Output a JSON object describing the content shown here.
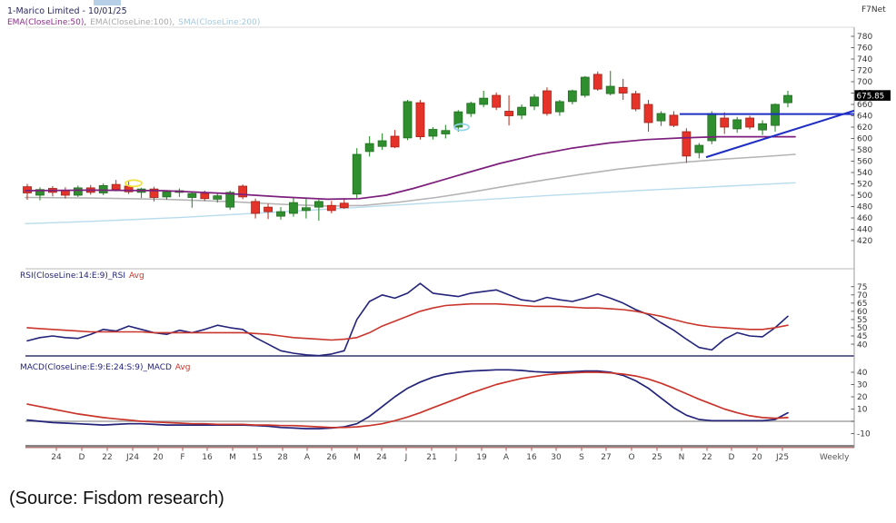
{
  "header": {
    "title": "1-Marico Limited - 10/01/25",
    "platform": "F7Net",
    "legend": [
      {
        "label": "EMA(CloseLine:50),",
        "color": "#8b2f8b"
      },
      {
        "label": "EMA(CloseLine:100),",
        "color": "#a8a8a8"
      },
      {
        "label": "SMA(CloseLine:200)",
        "color": "#a5c9de"
      }
    ]
  },
  "price_label": "675.85",
  "timeframe": "Weekly",
  "source": "(Source: Fisdom research)",
  "rsi_label": {
    "main": "RSI(CloseLine:14:E:9)_RSI",
    "avg": "Avg"
  },
  "macd_label": {
    "main": "MACD(CloseLine:E:9:E:24:S:9)_MACD",
    "avg": "Avg"
  },
  "colors": {
    "candle_up": "#2f8f2f",
    "candle_up_stroke": "#256b25",
    "candle_down": "#e63329",
    "candle_down_stroke": "#a32318",
    "ema50": "#7d1f7d",
    "ema100": "#b4b4b4",
    "sma200": "#b9dcec",
    "indicator_main": "#23237a",
    "indicator_avg": "#c9352b",
    "trendline": "#1f2ec4",
    "axis_red": "#9a4a4a",
    "tick_red": "#b05050",
    "annotation_yellow": "#f0e13a",
    "annotation_cyan": "#8fd4e8"
  },
  "chart_data": [
    {
      "type": "candlestick",
      "title": "1-Marico Limited - 10/01/25",
      "timeframe": "Weekly",
      "last_price": 675.85,
      "ylim": [
        420,
        780
      ],
      "yticks": [
        780,
        760,
        740,
        720,
        700,
        680,
        660,
        640,
        620,
        600,
        580,
        560,
        540,
        520,
        500,
        480,
        460,
        440,
        420
      ],
      "x_labels": [
        [
          62,
          "24"
        ],
        [
          90,
          "D"
        ],
        [
          118,
          "22"
        ],
        [
          146,
          "J24"
        ],
        [
          174,
          "20"
        ],
        [
          201,
          "F"
        ],
        [
          228,
          "16"
        ],
        [
          256,
          "M"
        ],
        [
          283,
          "15"
        ],
        [
          311,
          "28"
        ],
        [
          338,
          "A"
        ],
        [
          365,
          "26"
        ],
        [
          393,
          "M"
        ],
        [
          420,
          "24"
        ],
        [
          447,
          "J"
        ],
        [
          475,
          "21"
        ],
        [
          502,
          "J"
        ],
        [
          530,
          "19"
        ],
        [
          557,
          "A"
        ],
        [
          585,
          "16"
        ],
        [
          612,
          "30"
        ],
        [
          640,
          "S"
        ],
        [
          667,
          "27"
        ],
        [
          695,
          "O"
        ],
        [
          723,
          "25"
        ],
        [
          750,
          "N"
        ],
        [
          778,
          "22"
        ],
        [
          805,
          "D"
        ],
        [
          833,
          "20"
        ],
        [
          861,
          "J25"
        ]
      ],
      "candles_ohlc": [
        [
          515,
          520,
          492,
          504
        ],
        [
          500,
          514,
          491,
          510
        ],
        [
          512,
          516,
          498,
          505
        ],
        [
          508,
          514,
          494,
          500
        ],
        [
          500,
          517,
          497,
          513
        ],
        [
          513,
          518,
          501,
          505
        ],
        [
          504,
          521,
          500,
          517
        ],
        [
          519,
          527,
          507,
          510
        ],
        [
          516,
          526,
          502,
          506
        ],
        [
          505,
          513,
          495,
          511
        ],
        [
          511,
          515,
          489,
          496
        ],
        [
          497,
          509,
          492,
          506
        ],
        [
          505,
          512,
          497,
          508
        ],
        [
          496,
          505,
          478,
          503
        ],
        [
          503,
          508,
          490,
          494
        ],
        [
          493,
          503,
          487,
          499
        ],
        [
          479,
          508,
          474,
          505
        ],
        [
          516,
          519,
          493,
          497
        ],
        [
          489,
          494,
          459,
          468
        ],
        [
          479,
          485,
          458,
          471
        ],
        [
          463,
          479,
          457,
          471
        ],
        [
          468,
          495,
          462,
          487
        ],
        [
          473,
          494,
          459,
          478
        ],
        [
          479,
          492,
          455,
          489
        ],
        [
          482,
          490,
          468,
          473
        ],
        [
          486,
          492,
          476,
          478
        ],
        [
          502,
          583,
          495,
          572
        ],
        [
          577,
          604,
          568,
          591
        ],
        [
          586,
          609,
          580,
          596
        ],
        [
          604,
          615,
          583,
          585
        ],
        [
          601,
          668,
          597,
          665
        ],
        [
          663,
          668,
          598,
          603
        ],
        [
          604,
          620,
          598,
          616
        ],
        [
          608,
          624,
          600,
          614
        ],
        [
          620,
          650,
          612,
          647
        ],
        [
          644,
          665,
          638,
          662
        ],
        [
          660,
          684,
          655,
          671
        ],
        [
          676,
          681,
          650,
          655
        ],
        [
          648,
          676,
          623,
          640
        ],
        [
          641,
          660,
          634,
          655
        ],
        [
          657,
          678,
          650,
          673
        ],
        [
          684,
          690,
          640,
          644
        ],
        [
          647,
          668,
          640,
          665
        ],
        [
          665,
          686,
          660,
          684
        ],
        [
          676,
          710,
          672,
          708
        ],
        [
          713,
          718,
          684,
          687
        ],
        [
          679,
          719,
          676,
          692
        ],
        [
          690,
          705,
          668,
          680
        ],
        [
          679,
          684,
          648,
          652
        ],
        [
          660,
          668,
          612,
          628
        ],
        [
          631,
          648,
          622,
          644
        ],
        [
          641,
          648,
          620,
          623
        ],
        [
          612,
          618,
          557,
          569
        ],
        [
          575,
          592,
          565,
          588
        ],
        [
          596,
          648,
          590,
          644
        ],
        [
          636,
          646,
          608,
          620
        ],
        [
          617,
          638,
          610,
          633
        ],
        [
          636,
          640,
          616,
          620
        ],
        [
          615,
          632,
          606,
          626
        ],
        [
          623,
          662,
          612,
          660
        ],
        [
          663,
          684,
          655,
          675.85
        ]
      ],
      "overlays": {
        "ema50": [
          [
            28,
            508
          ],
          [
            100,
            509
          ],
          [
            180,
            508
          ],
          [
            250,
            503
          ],
          [
            310,
            497
          ],
          [
            360,
            493
          ],
          [
            395,
            494
          ],
          [
            425,
            500
          ],
          [
            455,
            512
          ],
          [
            485,
            526
          ],
          [
            515,
            540
          ],
          [
            550,
            556
          ],
          [
            590,
            571
          ],
          [
            630,
            583
          ],
          [
            670,
            592
          ],
          [
            710,
            598
          ],
          [
            750,
            601
          ],
          [
            790,
            603
          ],
          [
            830,
            603
          ],
          [
            875,
            603
          ]
        ],
        "ema100": [
          [
            28,
            496
          ],
          [
            100,
            495
          ],
          [
            180,
            493
          ],
          [
            250,
            489
          ],
          [
            310,
            484
          ],
          [
            360,
            481
          ],
          [
            400,
            482
          ],
          [
            440,
            488
          ],
          [
            480,
            496
          ],
          [
            520,
            506
          ],
          [
            560,
            517
          ],
          [
            600,
            527
          ],
          [
            640,
            537
          ],
          [
            680,
            546
          ],
          [
            720,
            553
          ],
          [
            760,
            559
          ],
          [
            800,
            564
          ],
          [
            840,
            568
          ],
          [
            875,
            572
          ]
        ],
        "sma200": [
          [
            28,
            450
          ],
          [
            100,
            454
          ],
          [
            200,
            461
          ],
          [
            300,
            470
          ],
          [
            400,
            479
          ],
          [
            500,
            489
          ],
          [
            600,
            499
          ],
          [
            700,
            508
          ],
          [
            800,
            516
          ],
          [
            875,
            522
          ]
        ]
      },
      "trendlines": [
        {
          "x1": 748,
          "p1": 643,
          "x2": 940,
          "p2": 643
        },
        {
          "x1": 777,
          "p1": 567,
          "x2": 940,
          "p2": 649
        }
      ],
      "annotations": [
        {
          "shape": "ellipse",
          "cx": 147,
          "price": 521,
          "rx": 9,
          "ry": 3.5,
          "color": "#f0e13a"
        },
        {
          "shape": "ellipse",
          "cx": 508,
          "price": 620,
          "rx": 8,
          "ry": 3.5,
          "color": "#8fd4e8"
        }
      ]
    },
    {
      "type": "line",
      "name": "RSI",
      "yticks": [
        75,
        70,
        65,
        60,
        55,
        50,
        45,
        40
      ],
      "series": [
        {
          "name": "RSI",
          "color": "#23237a",
          "values": [
            42,
            44,
            45,
            44,
            43.5,
            46,
            49,
            48,
            51,
            49,
            47,
            46,
            48.5,
            47,
            49,
            51.5,
            50,
            49,
            44,
            40,
            36,
            34.5,
            33.5,
            33,
            34,
            36,
            55,
            66,
            70,
            68,
            71,
            77,
            71,
            70,
            69,
            71,
            72,
            73,
            70,
            67,
            66,
            68.5,
            67,
            66,
            68,
            70.5,
            68,
            65,
            61,
            58,
            53,
            48.5,
            43,
            38,
            36.5,
            43,
            47,
            45,
            44.5,
            50,
            57
          ]
        },
        {
          "name": "Avg",
          "color": "#c9352b",
          "values": [
            50,
            49.5,
            49,
            48.5,
            48,
            47.5,
            47.5,
            47.5,
            47.5,
            47.5,
            47,
            47,
            47,
            47,
            47,
            47,
            47,
            47,
            46.5,
            46,
            45,
            44,
            43.5,
            43,
            42.5,
            43,
            44,
            47,
            51,
            54,
            57,
            60,
            62,
            63.5,
            64,
            64.5,
            64.5,
            64.5,
            64,
            63.5,
            63,
            63,
            63,
            62.5,
            62,
            62,
            61.5,
            61,
            60,
            58.5,
            57,
            55,
            53,
            51.5,
            50.5,
            50,
            49.5,
            49,
            49,
            50,
            51.5
          ]
        }
      ]
    },
    {
      "type": "line",
      "name": "MACD",
      "yticks": [
        40,
        30,
        20,
        10,
        0,
        -10
      ],
      "zero_line": true,
      "series": [
        {
          "name": "MACD",
          "color": "#23237a",
          "values": [
            1,
            0,
            -1,
            -1.5,
            -2,
            -2.5,
            -3,
            -2.5,
            -2,
            -2,
            -2.5,
            -3,
            -3,
            -3,
            -3,
            -3,
            -3,
            -3,
            -3.5,
            -4,
            -5,
            -5.5,
            -6,
            -6,
            -5.5,
            -4.5,
            -2,
            4,
            12,
            20,
            27,
            32,
            36,
            38.5,
            40,
            41,
            41.5,
            42,
            42,
            41.5,
            40.5,
            40,
            40,
            40.5,
            41,
            41,
            40,
            37.5,
            33,
            27,
            19,
            11,
            5,
            1.5,
            0.5,
            0.5,
            0.5,
            0.5,
            0.5,
            1.5,
            7
          ]
        },
        {
          "name": "Avg",
          "color": "#c9352b",
          "values": [
            14,
            12,
            10,
            8,
            6,
            4.5,
            3,
            2,
            1,
            0,
            -0.5,
            -1,
            -1.5,
            -2,
            -2,
            -2.5,
            -2.5,
            -2.5,
            -3,
            -3,
            -3.5,
            -3.5,
            -4,
            -4.5,
            -5,
            -5,
            -4.5,
            -3.5,
            -2,
            0.5,
            3.5,
            7,
            11,
            15,
            19,
            23,
            26.5,
            30,
            32.5,
            35,
            36.5,
            38,
            39,
            39.5,
            40,
            40,
            39.5,
            38.5,
            37,
            34.5,
            31,
            27,
            22.5,
            18,
            14,
            10,
            7,
            4.5,
            3,
            2.5,
            3
          ]
        }
      ]
    }
  ]
}
